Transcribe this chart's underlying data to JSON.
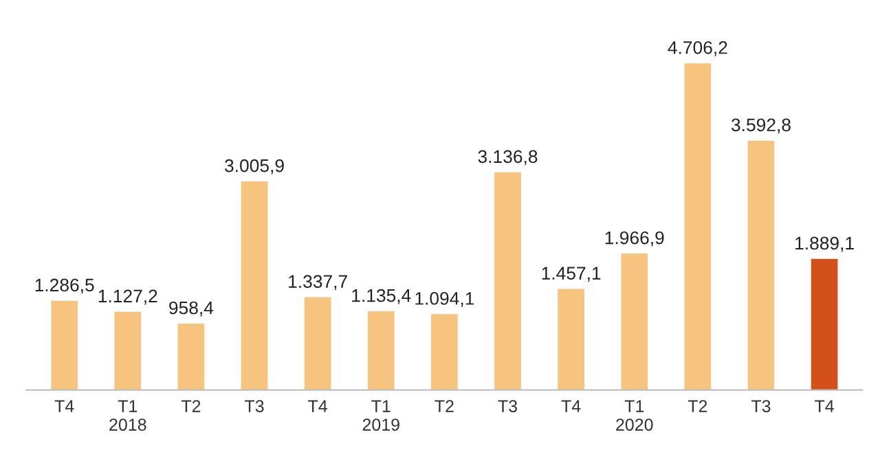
{
  "chart_data": {
    "type": "bar",
    "categories": [
      "T4",
      "T1\n2018",
      "T2",
      "T3",
      "T4",
      "T1\n2019",
      "T2",
      "T3",
      "T4",
      "T1\n2020",
      "T2",
      "T3",
      "T4"
    ],
    "values": [
      1286.5,
      1127.2,
      958.4,
      3005.9,
      1337.7,
      1135.4,
      1094.1,
      3136.8,
      1457.1,
      1966.9,
      4706.2,
      3592.8,
      1889.1
    ],
    "value_labels": [
      "1.286,5",
      "1.127,2",
      "958,4",
      "3.005,9",
      "1.337,7",
      "1.135,4",
      "1.094,1",
      "3.136,8",
      "1.457,1",
      "1.966,9",
      "4.706,2",
      "3.592,8",
      "1.889,1"
    ],
    "colors": [
      "#f6c47e",
      "#f6c47e",
      "#f6c47e",
      "#f6c47e",
      "#f6c47e",
      "#f6c47e",
      "#f6c47e",
      "#f6c47e",
      "#f6c47e",
      "#f6c47e",
      "#f6c47e",
      "#f6c47e",
      "#d4501a"
    ],
    "grid": false
  }
}
